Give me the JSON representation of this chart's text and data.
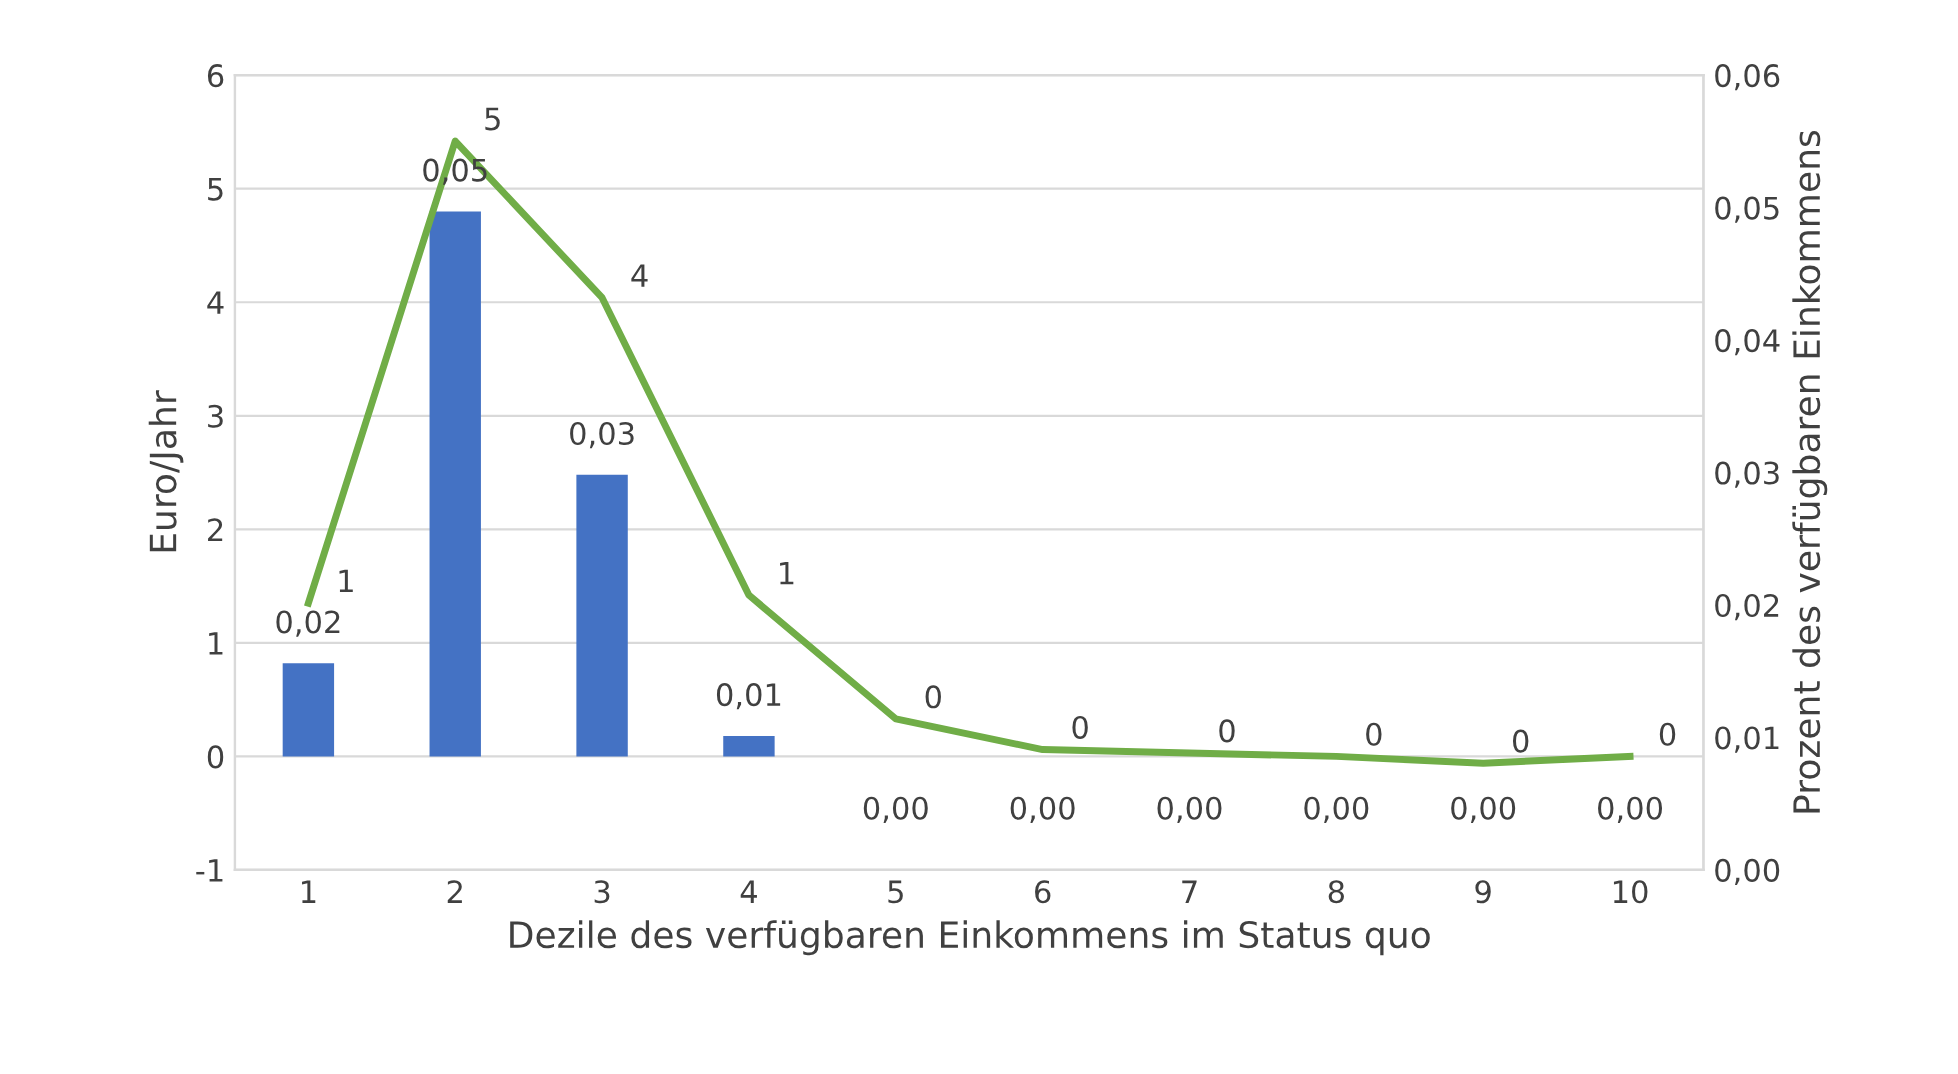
{
  "chart_data": {
    "type": "bar",
    "categories": [
      "1",
      "2",
      "3",
      "4",
      "5",
      "6",
      "7",
      "8",
      "9",
      "10"
    ],
    "xlabel": "Dezile des verfügbaren Einkommens im Status quo",
    "ylabel": "Euro/Jahr",
    "y2label": "Prozent des verfügbaren Einkommens",
    "ylim": [
      -1,
      6
    ],
    "yticks": [
      -1,
      0,
      1,
      2,
      3,
      4,
      5,
      6
    ],
    "y2lim": [
      0,
      0.06
    ],
    "y2ticks": [
      {
        "value": 0,
        "label": "0,00"
      },
      {
        "value": 0.01,
        "label": "0,01"
      },
      {
        "value": 0.02,
        "label": "0,02"
      },
      {
        "value": 0.03,
        "label": "0,03"
      },
      {
        "value": 0.04,
        "label": "0,04"
      },
      {
        "value": 0.05,
        "label": "0,05"
      },
      {
        "value": 0.06,
        "label": "0,06"
      }
    ],
    "annotations": [
      {
        "text": "0,02",
        "x": "1",
        "y": 0.82
      },
      {
        "text": "0,05",
        "x": "2",
        "y": 4.8
      },
      {
        "text": "0,03",
        "x": "3",
        "y": 2.48
      },
      {
        "text": "0,01",
        "x": "4",
        "y": 0.18
      },
      {
        "text": "0,00",
        "x": "5",
        "y": 0
      },
      {
        "text": "0,00",
        "x": "6",
        "y": 0
      },
      {
        "text": "0,00",
        "x": "7",
        "y": 0
      },
      {
        "text": "0,00",
        "x": "8",
        "y": 0
      },
      {
        "text": "0,00",
        "x": "9",
        "y": 0
      },
      {
        "text": "0,00",
        "x": "10",
        "y": 0
      }
    ],
    "grid": "y",
    "legend": false,
    "marker": "none",
    "series": [
      {
        "color": "#4472c4",
        "values": [
          0.82,
          4.8,
          2.48,
          0.18,
          0,
          0,
          0,
          0,
          0,
          0
        ]
      },
      {
        "type": "line",
        "color": "#70ad47",
        "values": [
          1.35,
          5.42,
          4.04,
          1.42,
          0.33,
          0.06,
          0.03,
          0.0,
          -0.06,
          0.0
        ],
        "value_labels": [
          "1",
          "5",
          "4",
          "1",
          "0",
          "0",
          "0",
          "0",
          "0",
          "0"
        ]
      }
    ]
  }
}
